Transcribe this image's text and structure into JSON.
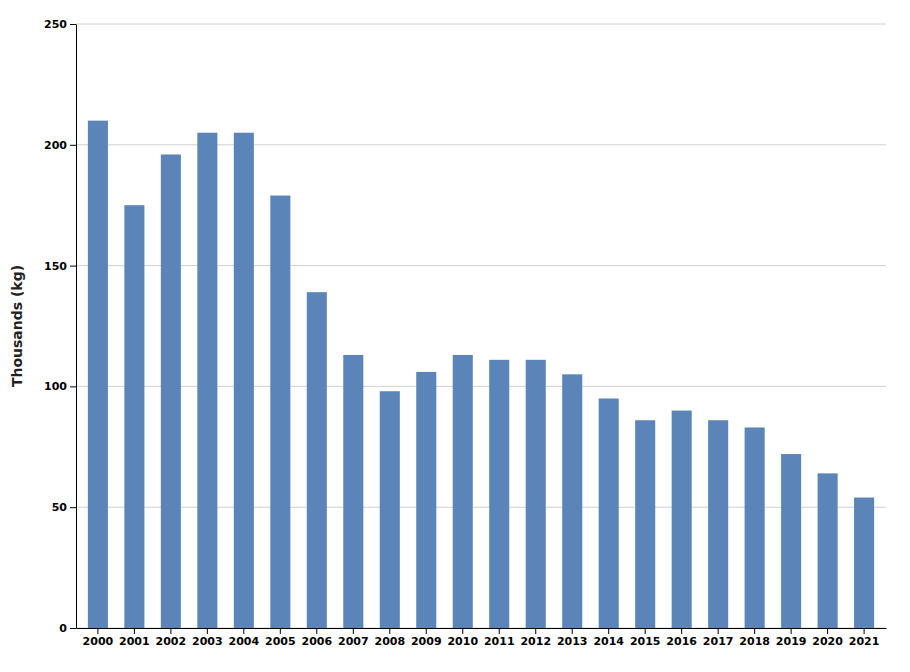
{
  "chart_data": {
    "type": "bar",
    "ylabel": "Thousands (kg)",
    "categories": [
      "2000",
      "2001",
      "2002",
      "2003",
      "2004",
      "2005",
      "2006",
      "2007",
      "2008",
      "2009",
      "2010",
      "2011",
      "2012",
      "2013",
      "2014",
      "2015",
      "2016",
      "2017",
      "2018",
      "2019",
      "2020",
      "2021"
    ],
    "values": [
      210,
      175,
      196,
      205,
      205,
      179,
      139,
      113,
      98,
      106,
      113,
      111,
      111,
      105,
      95,
      86,
      90,
      86,
      83,
      72,
      64,
      54
    ],
    "color": "#5b85b8",
    "ylim": [
      0,
      250
    ],
    "yticks": [
      0,
      50,
      100,
      150,
      200,
      250
    ],
    "grid": true
  }
}
